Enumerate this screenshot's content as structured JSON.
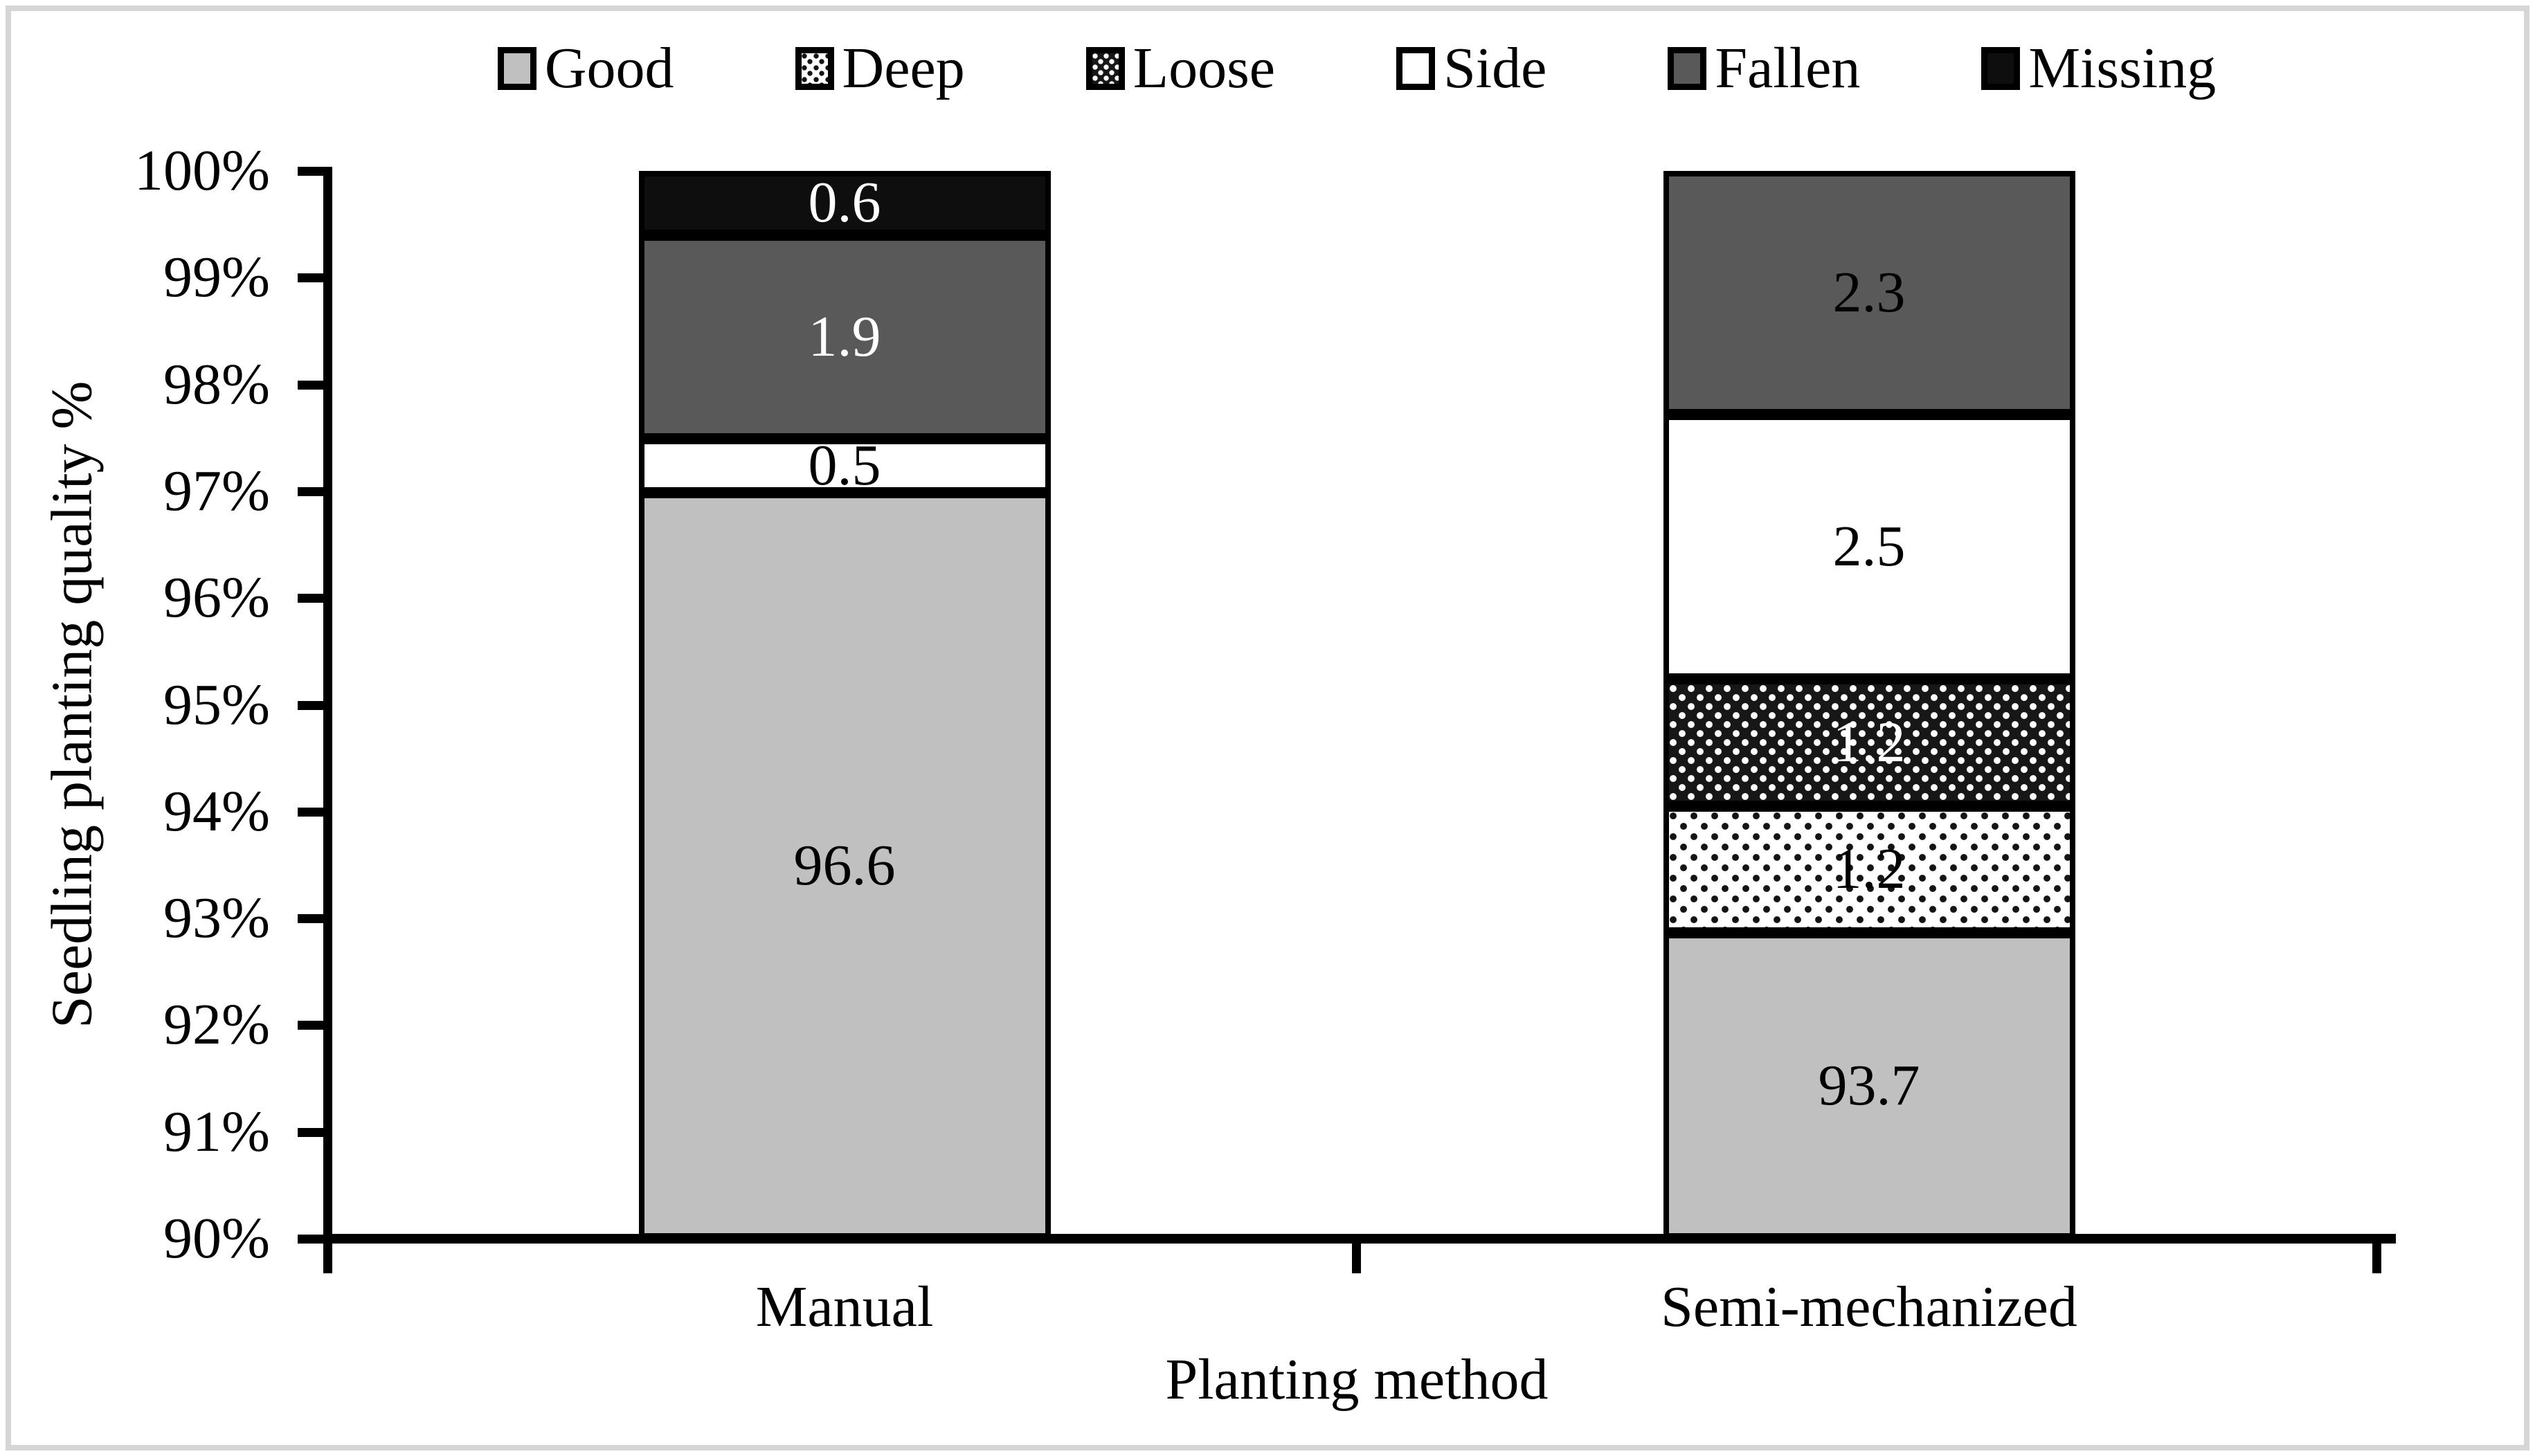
{
  "figure": {
    "background": "#ffffff",
    "border_color": "#d6d6d6"
  },
  "legend": {
    "items": [
      {
        "label": "Good",
        "pattern": "solid",
        "fill": "#c0c0c0"
      },
      {
        "label": "Deep",
        "pattern": "dots-dark-on-white",
        "fill": "#ffffff"
      },
      {
        "label": "Loose",
        "pattern": "dots-white-on-dark",
        "fill": "#171717"
      },
      {
        "label": "Side",
        "pattern": "solid",
        "fill": "#ffffff"
      },
      {
        "label": "Fallen",
        "pattern": "solid",
        "fill": "#595959"
      },
      {
        "label": "Missing",
        "pattern": "solid",
        "fill": "#0e0e0e"
      }
    ]
  },
  "chart_data": {
    "type": "bar",
    "stacked": true,
    "percent_stacked": true,
    "title": "",
    "xlabel": "Planting method",
    "ylabel": "Seedling planting quality %",
    "categories": [
      "Manual",
      "Semi-mechanized"
    ],
    "series": [
      {
        "name": "Good",
        "pattern": "solid",
        "fill": "#c0c0c0",
        "values": [
          96.6,
          93.7
        ],
        "label_colors": [
          "#000000",
          "#000000"
        ]
      },
      {
        "name": "Deep",
        "pattern": "dots-dark-on-white",
        "fill": "#ffffff",
        "values": [
          0,
          1.2
        ],
        "label_colors": [
          "#000000",
          "#000000"
        ]
      },
      {
        "name": "Loose",
        "pattern": "dots-white-on-dark",
        "fill": "#171717",
        "values": [
          0,
          1.2
        ],
        "label_colors": [
          "#ffffff",
          "#ffffff"
        ]
      },
      {
        "name": "Side",
        "pattern": "solid",
        "fill": "#ffffff",
        "values": [
          0.5,
          2.5
        ],
        "label_colors": [
          "#000000",
          "#000000"
        ]
      },
      {
        "name": "Fallen",
        "pattern": "solid",
        "fill": "#595959",
        "values": [
          1.9,
          2.3
        ],
        "label_colors": [
          "#ffffff",
          "#000000"
        ]
      },
      {
        "name": "Missing",
        "pattern": "solid",
        "fill": "#0e0e0e",
        "values": [
          0.6,
          0
        ],
        "label_colors": [
          "#ffffff",
          "#ffffff"
        ]
      }
    ],
    "data_labels": [
      "96.6",
      "0.5",
      "1.9",
      "0.6",
      "93.7",
      "1.2",
      "1.2",
      "2.5",
      "2.3"
    ],
    "ylim": [
      90,
      100
    ],
    "ytick_step": 1,
    "ytick_suffix": "%",
    "grid": false,
    "legend_position": "top"
  }
}
